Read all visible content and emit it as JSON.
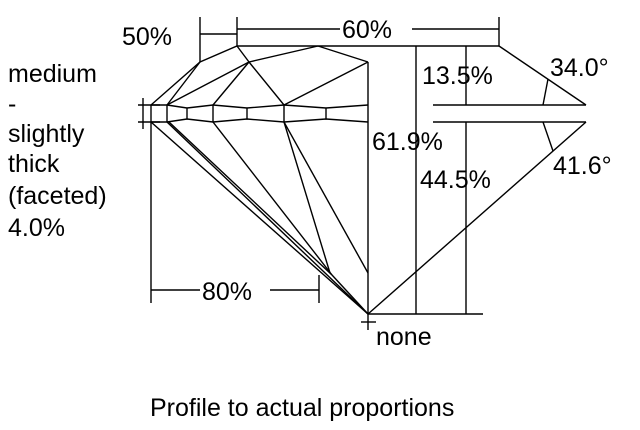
{
  "labels": {
    "crown_height_ratio": "50%",
    "table": "60%",
    "crown_height": "13.5%",
    "crown_angle": "34.0°",
    "total_depth": "61.9%",
    "pavilion_depth": "44.5%",
    "pavilion_angle": "41.6°",
    "lower_half": "80%",
    "culet": "none",
    "girdle_lines": [
      "medium",
      "-",
      "slightly",
      "thick",
      "(faceted)",
      "4.0%"
    ]
  },
  "caption": "Profile to actual proportions",
  "colors": {
    "line": "#000000",
    "background": "#ffffff"
  }
}
